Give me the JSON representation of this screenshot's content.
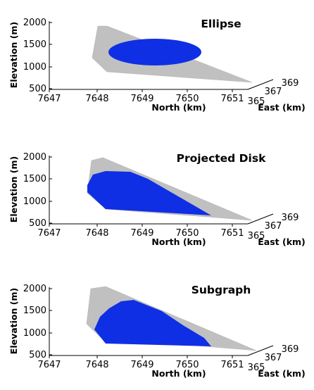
{
  "chart_data": [
    {
      "type": "surface3d",
      "title": "Ellipse",
      "xlabel": "North (km)",
      "ylabel": "East (km)",
      "zlabel": "Elevation (m)",
      "x_ticks": [
        "7647",
        "7648",
        "7649",
        "7650",
        "7651"
      ],
      "y_ticks": [
        "365",
        "367",
        "369"
      ],
      "z_ticks": [
        "2000",
        "1500",
        "1000",
        "500"
      ],
      "zlim": [
        500,
        2000
      ],
      "series": [
        {
          "role": "terrain-plane",
          "color": "#c0c0c0"
        },
        {
          "role": "ellipse",
          "color": "#1133ee"
        }
      ]
    },
    {
      "type": "surface3d",
      "title": "Projected Disk",
      "xlabel": "North (km)",
      "ylabel": "East (km)",
      "zlabel": "Elevation (m)",
      "x_ticks": [
        "7647",
        "7648",
        "7649",
        "7650",
        "7651"
      ],
      "y_ticks": [
        "365",
        "367",
        "369"
      ],
      "z_ticks": [
        "2000",
        "1500",
        "1000",
        "500"
      ],
      "zlim": [
        500,
        2000
      ],
      "series": [
        {
          "role": "terrain-plane",
          "color": "#c0c0c0"
        },
        {
          "role": "projected-disk",
          "color": "#1133ee"
        }
      ]
    },
    {
      "type": "surface3d",
      "title": "Subgraph",
      "xlabel": "North (km)",
      "ylabel": "East (km)",
      "zlabel": "Elevation (m)",
      "x_ticks": [
        "7647",
        "7648",
        "7649",
        "7650",
        "7651"
      ],
      "y_ticks": [
        "365",
        "367",
        "369"
      ],
      "z_ticks": [
        "2000",
        "1500",
        "1000",
        "500"
      ],
      "zlim": [
        500,
        2000
      ],
      "series": [
        {
          "role": "terrain-plane",
          "color": "#c0c0c0"
        },
        {
          "role": "subgraph",
          "color": "#1133ee"
        }
      ]
    }
  ]
}
